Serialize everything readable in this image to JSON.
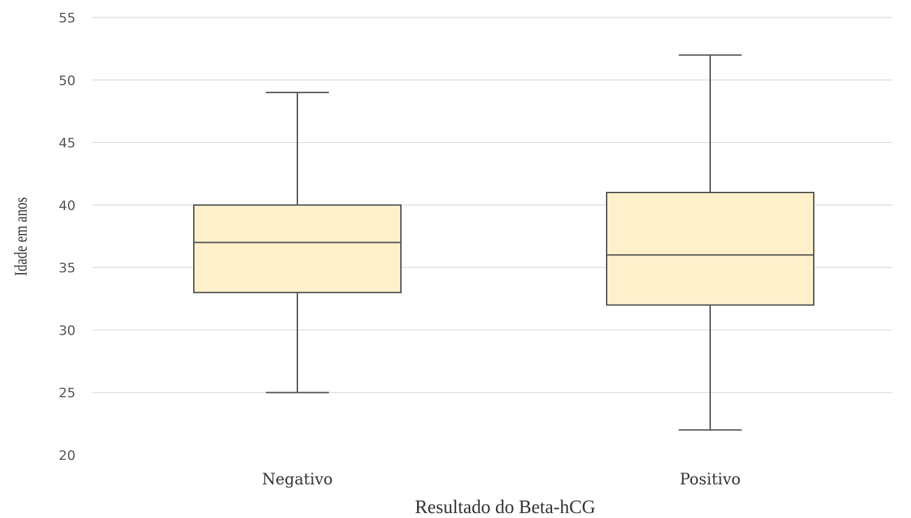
{
  "chart_data": {
    "type": "boxplot",
    "title": "",
    "xlabel": "Resultado do Beta-hCG",
    "ylabel": "Idade em anos",
    "ylim": [
      20,
      55
    ],
    "yticks": [
      20,
      25,
      30,
      35,
      40,
      45,
      50,
      55
    ],
    "grid": true,
    "categories": [
      "Negativo",
      "Positivo"
    ],
    "boxes": [
      {
        "category": "Negativo",
        "min": 25,
        "q1": 33,
        "median": 37,
        "q3": 40,
        "max": 49
      },
      {
        "category": "Positivo",
        "min": 22,
        "q1": 32,
        "median": 36,
        "q3": 41,
        "max": 52
      }
    ],
    "colors": {
      "box_fill": "#fff0cc",
      "box_stroke": "#555555",
      "grid": "#d9d9d9"
    }
  }
}
